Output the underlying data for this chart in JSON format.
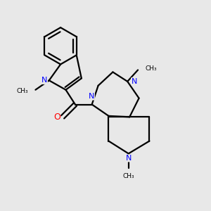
{
  "bg_color": "#e8e8e8",
  "bond_color": "#000000",
  "N_color": "#0000ff",
  "O_color": "#ff0000",
  "font_size": 8.0,
  "line_width": 1.6,
  "figsize": [
    3.0,
    3.0
  ],
  "dpi": 100,
  "xlim": [
    0,
    10
  ],
  "ylim": [
    0,
    10
  ]
}
